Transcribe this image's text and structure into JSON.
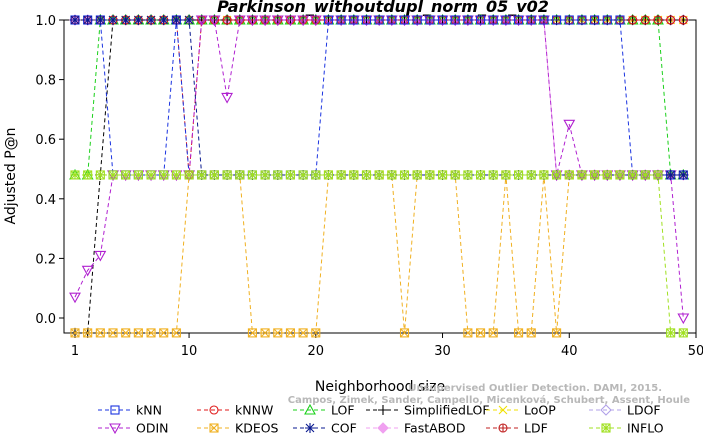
{
  "chart_data": {
    "type": "line",
    "title": "Parkinson_withoutdupl_norm_05_v02",
    "xlabel": "Neighborhood size",
    "ylabel": "Adjusted P@n",
    "xlim": [
      0,
      50
    ],
    "ylim": [
      -0.05,
      1.0
    ],
    "x_ticks": [
      1,
      10,
      20,
      30,
      40,
      50
    ],
    "y_ticks": [
      0.0,
      0.2,
      0.4,
      0.6,
      0.8,
      1.0
    ],
    "y_tick_labels": [
      "0.0",
      "0.2",
      "0.4",
      "0.6",
      "0.8",
      "1.0"
    ],
    "x": [
      1,
      2,
      3,
      4,
      5,
      6,
      7,
      8,
      9,
      10,
      11,
      12,
      13,
      14,
      15,
      16,
      17,
      18,
      19,
      20,
      21,
      22,
      23,
      24,
      25,
      26,
      27,
      28,
      29,
      30,
      31,
      32,
      33,
      34,
      35,
      36,
      37,
      38,
      39,
      40,
      41,
      42,
      43,
      44,
      45,
      46,
      47,
      48,
      49
    ],
    "series": [
      {
        "name": "kNN",
        "color": "#1a33e0",
        "marker": "square",
        "values": [
          1.0,
          1.0,
          1.0,
          0.48,
          0.48,
          0.48,
          0.48,
          0.48,
          1.0,
          0.48,
          0.48,
          0.48,
          0.48,
          0.48,
          0.48,
          0.48,
          0.48,
          0.48,
          0.48,
          0.48,
          1.0,
          1.0,
          1.0,
          1.0,
          1.0,
          1.0,
          1.0,
          1.0,
          1.0,
          1.0,
          1.0,
          1.0,
          1.0,
          1.0,
          1.0,
          1.0,
          1.0,
          1.0,
          1.0,
          1.0,
          1.0,
          1.0,
          1.0,
          1.0,
          0.48,
          0.48,
          0.48,
          0.48,
          0.48
        ]
      },
      {
        "name": "kNNW",
        "color": "#e01a1a",
        "marker": "circle",
        "values": [
          1.0,
          1.0,
          1.0,
          1.0,
          1.0,
          1.0,
          1.0,
          1.0,
          1.0,
          0.48,
          1.0,
          1.0,
          1.0,
          1.0,
          1.0,
          1.0,
          1.0,
          1.0,
          1.0,
          1.0,
          1.0,
          1.0,
          1.0,
          1.0,
          1.0,
          1.0,
          1.0,
          1.0,
          1.0,
          1.0,
          1.0,
          1.0,
          1.0,
          1.0,
          1.0,
          1.0,
          1.0,
          1.0,
          1.0,
          1.0,
          1.0,
          1.0,
          1.0,
          1.0,
          1.0,
          1.0,
          1.0,
          1.0,
          1.0
        ]
      },
      {
        "name": "LOF",
        "color": "#1ad01a",
        "marker": "triangle",
        "values": [
          0.48,
          0.48,
          1.0,
          1.0,
          1.0,
          1.0,
          1.0,
          1.0,
          1.0,
          1.0,
          1.0,
          1.0,
          1.0,
          1.0,
          1.0,
          1.0,
          1.0,
          1.0,
          1.0,
          1.0,
          1.0,
          1.0,
          1.0,
          1.0,
          1.0,
          1.0,
          1.0,
          1.0,
          1.0,
          1.0,
          1.0,
          1.0,
          1.0,
          1.0,
          1.0,
          1.0,
          1.0,
          1.0,
          1.0,
          1.0,
          1.0,
          1.0,
          1.0,
          1.0,
          1.0,
          1.0,
          1.0,
          0.48,
          0.48
        ]
      },
      {
        "name": "SimplifiedLOF",
        "color": "#000000",
        "marker": "plus",
        "values": [
          -0.05,
          -0.05,
          0.48,
          1.0,
          1.0,
          1.0,
          1.0,
          1.0,
          1.0,
          1.0,
          1.0,
          1.0,
          1.0,
          1.0,
          1.0,
          1.0,
          1.0,
          1.0,
          1.0,
          1.0,
          1.0,
          1.0,
          1.0,
          1.0,
          1.0,
          1.0,
          1.0,
          1.0,
          1.0,
          1.0,
          1.0,
          1.0,
          1.0,
          1.0,
          1.0,
          1.0,
          1.0,
          1.0,
          1.0,
          1.0,
          1.0,
          1.0,
          1.0,
          1.0,
          1.0,
          1.0,
          1.0,
          1.0,
          1.0
        ]
      },
      {
        "name": "LoOP",
        "color": "#f0e000",
        "marker": "x",
        "values": [
          1.0,
          1.0,
          1.0,
          1.0,
          1.0,
          1.0,
          1.0,
          1.0,
          1.0,
          1.0,
          1.0,
          1.0,
          1.0,
          1.0,
          1.0,
          1.0,
          1.0,
          1.0,
          1.0,
          1.0,
          1.0,
          1.0,
          1.0,
          1.0,
          1.0,
          1.0,
          1.0,
          1.0,
          1.0,
          1.0,
          1.0,
          1.0,
          1.0,
          1.0,
          1.0,
          1.0,
          1.0,
          1.0,
          1.0,
          1.0,
          1.0,
          1.0,
          1.0,
          1.0,
          1.0,
          1.0,
          1.0,
          1.0,
          1.0
        ]
      },
      {
        "name": "LDOF",
        "color": "#b0a0e8",
        "marker": "diamond",
        "values": [
          1.0,
          1.0,
          1.0,
          1.0,
          1.0,
          1.0,
          1.0,
          1.0,
          1.0,
          1.0,
          1.0,
          1.0,
          1.0,
          1.0,
          1.0,
          1.0,
          1.0,
          1.0,
          1.0,
          1.0,
          1.0,
          1.0,
          1.0,
          1.0,
          1.0,
          1.0,
          1.0,
          1.0,
          1.0,
          1.0,
          1.0,
          1.0,
          1.0,
          1.0,
          1.0,
          1.0,
          1.0,
          1.0,
          1.0,
          1.0,
          1.0,
          1.0,
          1.0,
          1.0,
          1.0,
          1.0,
          1.0,
          1.0,
          1.0
        ]
      },
      {
        "name": "ODIN",
        "color": "#b020d0",
        "marker": "triangle-down",
        "values": [
          0.07,
          0.16,
          0.21,
          0.48,
          0.48,
          0.48,
          0.48,
          0.48,
          0.48,
          0.48,
          1.0,
          1.0,
          0.74,
          1.0,
          1.0,
          1.0,
          1.0,
          1.0,
          1.0,
          1.0,
          1.0,
          1.0,
          1.0,
          1.0,
          1.0,
          1.0,
          1.0,
          1.0,
          1.0,
          1.0,
          1.0,
          1.0,
          1.0,
          1.0,
          1.0,
          1.0,
          1.0,
          1.0,
          0.48,
          0.65,
          0.48,
          0.48,
          0.48,
          0.48,
          0.48,
          0.48,
          0.48,
          0.48,
          0.0
        ]
      },
      {
        "name": "KDEOS",
        "color": "#f0b020",
        "marker": "square-x",
        "values": [
          -0.05,
          -0.05,
          -0.05,
          -0.05,
          -0.05,
          -0.05,
          -0.05,
          -0.05,
          -0.05,
          0.48,
          0.48,
          0.48,
          0.48,
          0.48,
          -0.05,
          -0.05,
          -0.05,
          -0.05,
          -0.05,
          -0.05,
          0.48,
          0.48,
          0.48,
          0.48,
          0.48,
          0.48,
          -0.05,
          0.48,
          0.48,
          0.48,
          0.48,
          -0.05,
          -0.05,
          -0.05,
          0.48,
          -0.05,
          -0.05,
          0.48,
          -0.05,
          0.48,
          0.48,
          0.48,
          0.48,
          0.48,
          0.48,
          0.48,
          0.48,
          0.48,
          0.48
        ]
      },
      {
        "name": "COF",
        "color": "#0a1a90",
        "marker": "star",
        "values": [
          1.0,
          1.0,
          1.0,
          1.0,
          1.0,
          1.0,
          1.0,
          1.0,
          1.0,
          1.0,
          0.48,
          0.48,
          0.48,
          0.48,
          0.48,
          0.48,
          0.48,
          0.48,
          0.48,
          0.48,
          0.48,
          0.48,
          0.48,
          0.48,
          0.48,
          0.48,
          0.48,
          0.48,
          0.48,
          0.48,
          0.48,
          0.48,
          0.48,
          0.48,
          0.48,
          0.48,
          0.48,
          0.48,
          0.48,
          0.48,
          0.48,
          0.48,
          0.48,
          0.48,
          0.48,
          0.48,
          0.48,
          0.48,
          0.48
        ]
      },
      {
        "name": "FastABOD",
        "color": "#f0a0f0",
        "marker": "diamond-filled",
        "values": [
          1.0,
          1.0,
          1.0,
          1.0,
          1.0,
          1.0,
          1.0,
          1.0,
          1.0,
          1.0,
          1.0,
          1.0,
          1.0,
          1.0,
          1.0,
          1.0,
          1.0,
          1.0,
          1.0,
          1.0,
          1.0,
          1.0,
          1.0,
          1.0,
          1.0,
          1.0,
          1.0,
          1.0,
          1.0,
          1.0,
          1.0,
          1.0,
          1.0,
          1.0,
          1.0,
          1.0,
          1.0,
          1.0,
          0.48,
          0.48,
          0.48,
          0.48,
          0.48,
          0.48,
          0.48,
          0.48,
          0.48,
          0.48,
          0.48
        ]
      },
      {
        "name": "LDF",
        "color": "#c02020",
        "marker": "circle-plus",
        "values": [
          1.0,
          1.0,
          1.0,
          1.0,
          1.0,
          1.0,
          1.0,
          1.0,
          1.0,
          1.0,
          1.0,
          1.0,
          1.0,
          1.0,
          1.0,
          1.0,
          1.0,
          1.0,
          1.0,
          1.0,
          1.0,
          1.0,
          1.0,
          1.0,
          1.0,
          1.0,
          1.0,
          1.0,
          1.0,
          1.0,
          1.0,
          1.0,
          1.0,
          1.0,
          1.0,
          1.0,
          1.0,
          1.0,
          1.0,
          1.0,
          1.0,
          1.0,
          1.0,
          1.0,
          1.0,
          1.0,
          1.0,
          1.0,
          1.0
        ]
      },
      {
        "name": "INFLO",
        "color": "#a0e020",
        "marker": "square-star",
        "values": [
          0.48,
          0.48,
          0.48,
          0.48,
          0.48,
          0.48,
          0.48,
          0.48,
          0.48,
          0.48,
          0.48,
          0.48,
          0.48,
          0.48,
          0.48,
          0.48,
          0.48,
          0.48,
          0.48,
          0.48,
          0.48,
          0.48,
          0.48,
          0.48,
          0.48,
          0.48,
          0.48,
          0.48,
          0.48,
          0.48,
          0.48,
          0.48,
          0.48,
          0.48,
          0.48,
          0.48,
          0.48,
          0.48,
          0.48,
          0.48,
          0.48,
          0.48,
          0.48,
          0.48,
          0.48,
          0.48,
          0.48,
          -0.05,
          -0.05
        ]
      }
    ],
    "legend_placement": "bottom",
    "grid": false
  },
  "watermark": {
    "line1": "Unsupervised Outlier Detection. DAMI, 2015.",
    "line2": "Campos, Zimek, Sander, Campello, Micenková, Schubert, Assent, Houle"
  }
}
